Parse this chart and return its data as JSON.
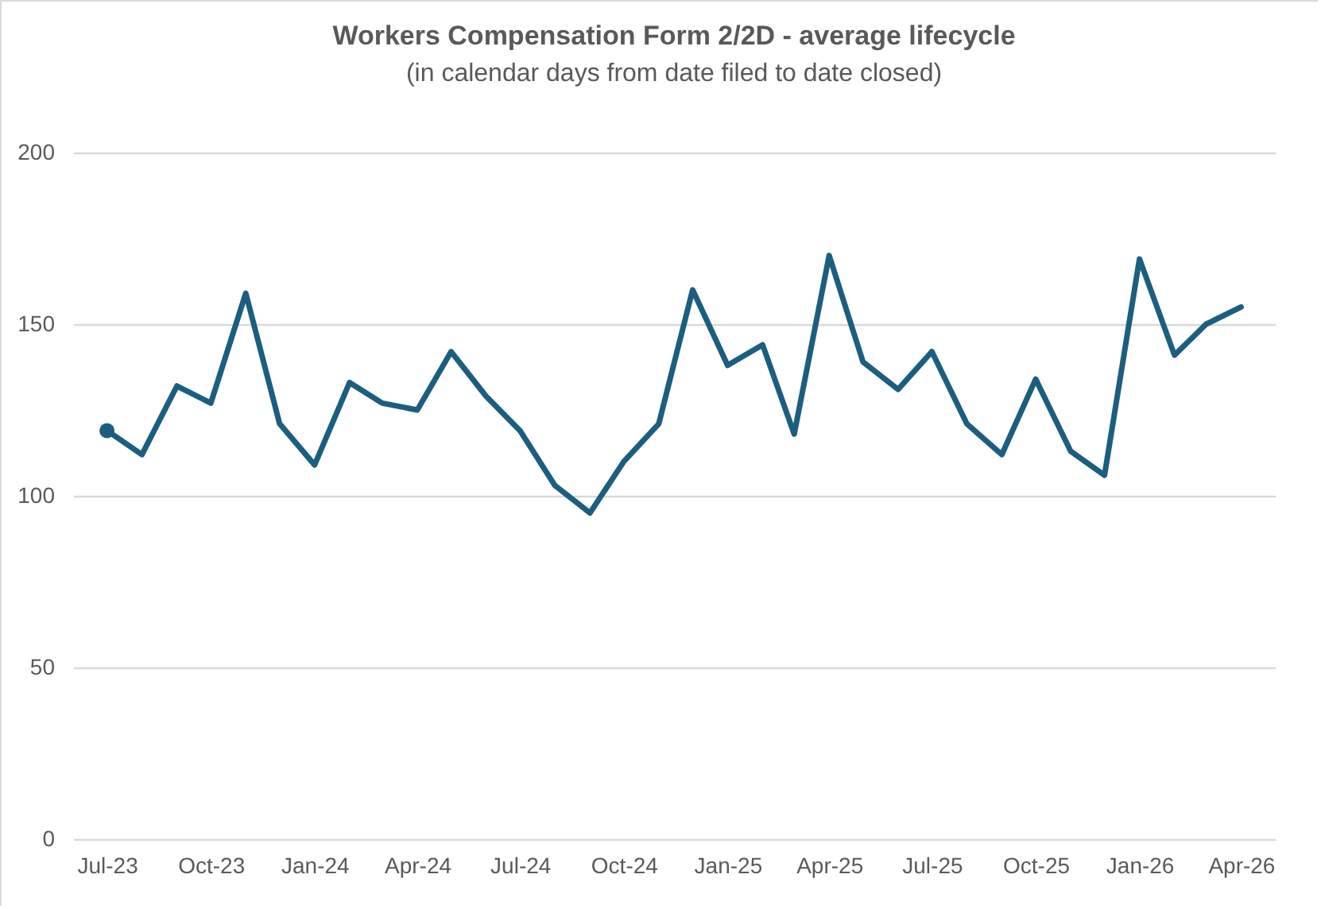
{
  "chart_data": {
    "type": "line",
    "title": "Workers Compensation Form 2/2D  - average lifecycle",
    "subtitle": "(in calendar days from date filed to date closed)",
    "x": [
      "2023-07",
      "2023-08",
      "2023-09",
      "2023-10",
      "2023-11",
      "2023-12",
      "2024-01",
      "2024-02",
      "2024-03",
      "2024-04",
      "2024-05",
      "2024-06",
      "2024-07",
      "2024-08",
      "2024-09",
      "2024-10",
      "2024-11",
      "2024-12",
      "2025-01",
      "2025-02",
      "2025-03",
      "2025-04",
      "2025-05",
      "2025-06",
      "2025-07",
      "2025-08",
      "2025-09",
      "2025-10",
      "2025-11",
      "2025-12",
      "2026-01",
      "2026-02",
      "2026-03",
      "2026-04"
    ],
    "series": [
      {
        "color": "#1b5e80",
        "values": [
          119,
          112,
          132,
          127,
          159,
          121,
          109,
          133,
          127,
          125,
          142,
          129,
          119,
          103,
          95,
          110,
          121,
          160,
          138,
          144,
          118,
          170,
          139,
          131,
          142,
          121,
          112,
          134,
          113,
          106,
          169,
          141,
          150,
          155
        ]
      },
      {
        "type": "scatter",
        "color": "#1b5e80",
        "x": [
          "2023-07"
        ],
        "values": [
          119
        ]
      }
    ],
    "xlim": [
      "2023-06",
      "2026-05"
    ],
    "xticks": [
      {
        "value": "2023-07",
        "label": "Jul-23"
      },
      {
        "value": "2023-10",
        "label": "Oct-23"
      },
      {
        "value": "2024-01",
        "label": "Jan-24"
      },
      {
        "value": "2024-04",
        "label": "Apr-24"
      },
      {
        "value": "2024-07",
        "label": "Jul-24"
      },
      {
        "value": "2024-10",
        "label": "Oct-24"
      },
      {
        "value": "2025-01",
        "label": "Jan-25"
      },
      {
        "value": "2025-04",
        "label": "Apr-25"
      },
      {
        "value": "2025-07",
        "label": "Jul-25"
      },
      {
        "value": "2025-10",
        "label": "Oct-25"
      },
      {
        "value": "2026-01",
        "label": "Jan-26"
      },
      {
        "value": "2026-04",
        "label": "Apr-26"
      }
    ],
    "ylim": [
      0,
      200
    ],
    "yticks": [
      0,
      50,
      100,
      150,
      200
    ],
    "grid": "y",
    "line_style": "solid"
  }
}
